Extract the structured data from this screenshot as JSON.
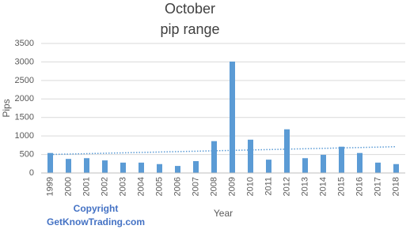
{
  "chart_data": {
    "type": "bar",
    "title": [
      "October",
      "pip range"
    ],
    "x_label": "Year",
    "y_label": "Pips",
    "annotations": [
      "Copyright",
      "GetKnowTrading.com"
    ],
    "categories": [
      "1999",
      "2000",
      "2001",
      "2002",
      "2003",
      "2004",
      "2005",
      "2006",
      "2007",
      "2008",
      "2009",
      "2010",
      "2011",
      "2012",
      "2013",
      "2014",
      "2015",
      "2016",
      "2017",
      "2018"
    ],
    "values": [
      540,
      380,
      400,
      340,
      280,
      280,
      240,
      190,
      320,
      860,
      3010,
      900,
      360,
      1180,
      400,
      490,
      710,
      540,
      280,
      240
    ],
    "color": "#5b9bd5",
    "trendline_values": [
      500,
      710
    ],
    "ylim": [
      0,
      3500
    ],
    "yticks": [
      0,
      500,
      1000,
      1500,
      2000,
      2500,
      3000,
      3500
    ],
    "grid": true
  }
}
